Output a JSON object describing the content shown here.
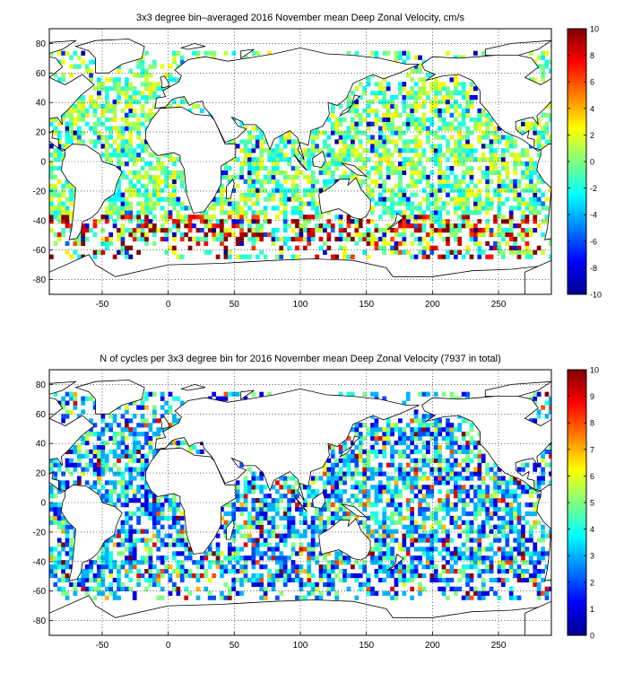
{
  "chart_data": [
    {
      "type": "heatmap",
      "title": "3x3 degree bin–averaged 2016 November mean Deep Zonal Velocity, cm/s",
      "xlabel": "",
      "ylabel": "",
      "xlim": [
        -90,
        290
      ],
      "ylim": [
        -90,
        90
      ],
      "x_ticks": [
        -50,
        0,
        50,
        100,
        150,
        200,
        250
      ],
      "y_ticks": [
        80,
        60,
        40,
        20,
        0,
        -20,
        -40,
        -60,
        -80
      ],
      "grid": true,
      "bin_size_deg": 3,
      "colorbar": {
        "min": -10,
        "max": 10,
        "ticks": [
          10,
          8,
          6,
          4,
          2,
          0,
          -2,
          -4,
          -6,
          -8,
          -10
        ],
        "colormap": "jet",
        "placement": "right"
      }
    },
    {
      "type": "heatmap",
      "title": "N of cycles per 3x3 degree bin for 2016 November mean Deep Zonal Velocity (7937 in total)",
      "xlabel": "",
      "ylabel": "",
      "xlim": [
        -90,
        290
      ],
      "ylim": [
        -90,
        90
      ],
      "x_ticks": [
        -50,
        0,
        50,
        100,
        150,
        200,
        250
      ],
      "y_ticks": [
        80,
        60,
        40,
        20,
        0,
        -20,
        -40,
        -60,
        -80
      ],
      "grid": true,
      "bin_size_deg": 3,
      "total_cycles": 7937,
      "colorbar": {
        "min": 0,
        "max": 10,
        "ticks": [
          10,
          9,
          8,
          7,
          6,
          5,
          4,
          3,
          2,
          1,
          0
        ],
        "colormap": "jet",
        "placement": "right"
      }
    }
  ]
}
